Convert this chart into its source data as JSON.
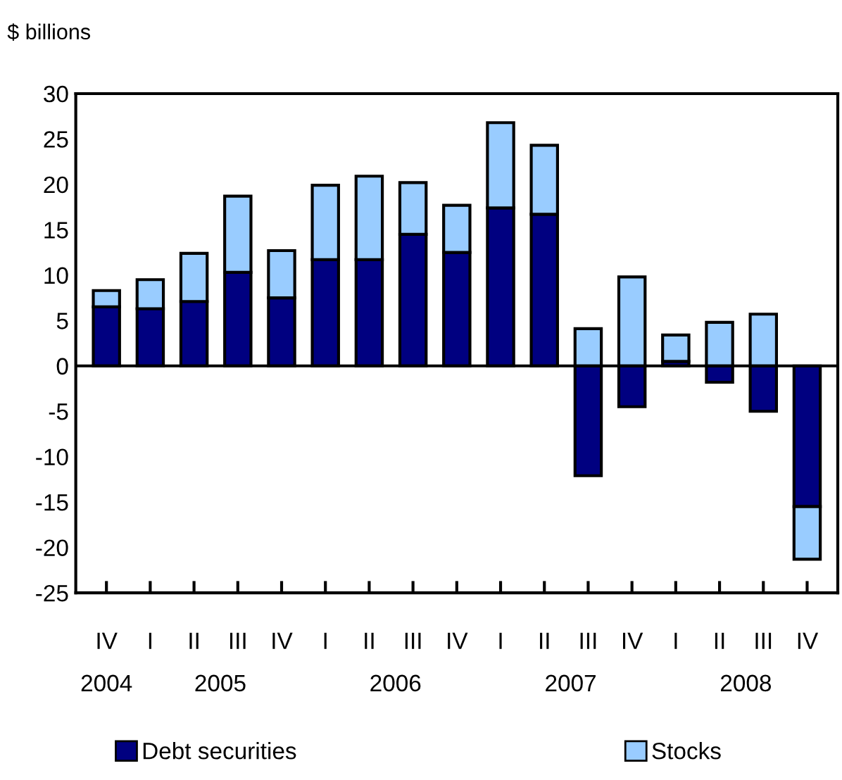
{
  "chart_data": {
    "type": "bar",
    "stacked": true,
    "ylabel": "$ billions",
    "categories": [
      "IV",
      "I",
      "II",
      "III",
      "IV",
      "I",
      "II",
      "III",
      "IV",
      "I",
      "II",
      "III",
      "IV",
      "I",
      "II",
      "III",
      "IV"
    ],
    "series": [
      {
        "name": "Debt securities",
        "color": "#000080",
        "values": [
          6.5,
          6.3,
          7.1,
          10.3,
          7.5,
          11.7,
          11.7,
          14.5,
          12.5,
          17.4,
          16.7,
          -12.1,
          -4.5,
          0.5,
          -1.8,
          -5.0,
          -15.5
        ]
      },
      {
        "name": "Stocks",
        "color": "#99ccff",
        "values": [
          1.8,
          3.2,
          5.3,
          8.4,
          5.2,
          8.2,
          9.2,
          5.7,
          5.2,
          9.4,
          7.6,
          4.1,
          9.8,
          2.9,
          4.8,
          5.7,
          -5.8
        ]
      }
    ],
    "annotations": [
      "2004",
      "2005",
      "2006",
      "2007",
      "2008"
    ],
    "ylim": [
      -25,
      30
    ],
    "yticks": [
      -25,
      -20,
      -15,
      -10,
      -5,
      0,
      5,
      10,
      15,
      20,
      25,
      30
    ],
    "ref_lines": [
      {
        "axis": "y",
        "value": 0,
        "color": "#000000"
      }
    ],
    "grid": false,
    "legend": "bottom"
  }
}
